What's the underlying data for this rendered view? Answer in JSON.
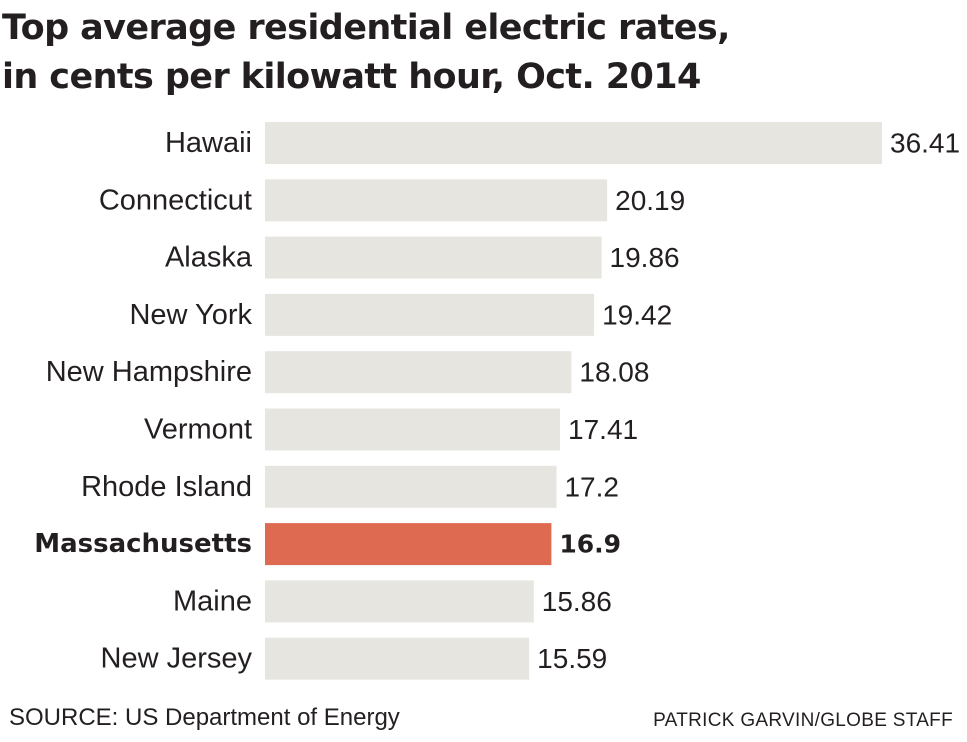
{
  "chart_data": {
    "type": "bar",
    "orientation": "horizontal",
    "title": "Top average residential electric rates, in cents per kilowatt hour, Oct. 2014",
    "title_lines": [
      "Top average residential electric rates,",
      "in cents per kilowatt hour, Oct. 2014"
    ],
    "categories": [
      "Hawaii",
      "Connecticut",
      "Alaska",
      "New York",
      "New Hampshire",
      "Vermont",
      "Rhode Island",
      "Massachusetts",
      "Maine",
      "New Jersey"
    ],
    "values": [
      36.41,
      20.19,
      19.86,
      19.42,
      18.08,
      17.41,
      17.2,
      16.9,
      15.86,
      15.59
    ],
    "value_labels": [
      "36.41",
      "20.19",
      "19.86",
      "19.42",
      "18.08",
      "17.41",
      "17.2",
      "16.9",
      "15.86",
      "15.59"
    ],
    "highlight": "Massachusetts",
    "xlim": [
      0,
      36.41
    ],
    "grid": false,
    "legend": "none",
    "xlabel": "",
    "ylabel": ""
  },
  "colors": {
    "bar": "#e7e5df",
    "highlight_bar": "#df6a52",
    "text": "#231f20"
  },
  "footer": {
    "source": "SOURCE: US Department of Energy",
    "credit": "PATRICK GARVIN/GLOBE STAFF"
  }
}
